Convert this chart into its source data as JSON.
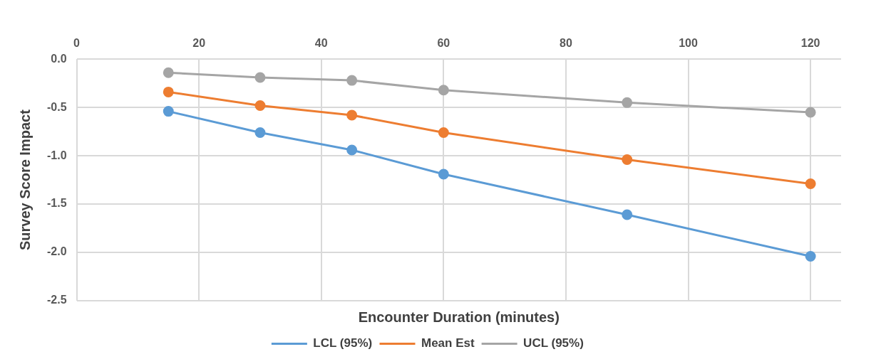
{
  "chart_data": {
    "type": "line",
    "xlabel": "Encounter Duration (minutes)",
    "ylabel": "Survey Score Impact",
    "x": [
      15,
      30,
      45,
      60,
      90,
      120
    ],
    "series": [
      {
        "name": "LCL (95%)",
        "color": "#5b9bd5",
        "values": [
          -0.54,
          -0.76,
          -0.94,
          -1.19,
          -1.61,
          -2.04
        ]
      },
      {
        "name": "Mean Est",
        "color": "#ed7d31",
        "values": [
          -0.34,
          -0.48,
          -0.58,
          -0.76,
          -1.04,
          -1.29
        ]
      },
      {
        "name": "UCL (95%)",
        "color": "#a5a5a5",
        "values": [
          -0.14,
          -0.19,
          -0.22,
          -0.32,
          -0.45,
          -0.55
        ]
      }
    ],
    "xlim": [
      0,
      125
    ],
    "xticks": [
      0,
      20,
      40,
      60,
      80,
      100,
      120
    ],
    "ylim": [
      -2.5,
      0
    ],
    "yticks": [
      {
        "value": 0,
        "label": "0.0"
      },
      {
        "value": -0.5,
        "label": "-0.5"
      },
      {
        "value": -1,
        "label": "-1.0"
      },
      {
        "value": -1.5,
        "label": "-1.5"
      },
      {
        "value": -2,
        "label": "-2.0"
      },
      {
        "value": -2.5,
        "label": "-2.5"
      }
    ],
    "grid": true,
    "legend": "bottom",
    "marker": "circle",
    "line_style": "solid"
  }
}
